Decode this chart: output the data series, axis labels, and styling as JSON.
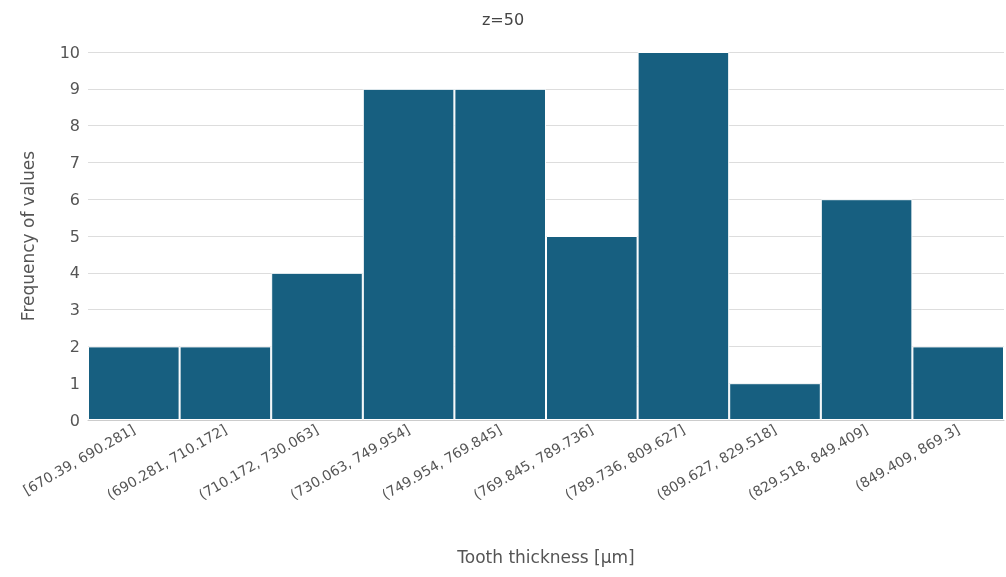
{
  "chart_data": {
    "type": "bar",
    "title": "z=50",
    "xlabel": "Tooth thickness [µm]",
    "ylabel": "Frequency of values",
    "categories": [
      "[670.39, 690.281]",
      "(690.281, 710.172]",
      "(710.172, 730.063]",
      "(730.063, 749.954]",
      "(749.954, 769.845]",
      "(769.845, 789.736]",
      "(789.736, 809.627]",
      "(809.627, 829.518]",
      "(829.518, 849.409]",
      "(849.409, 869.3]"
    ],
    "values": [
      2,
      2,
      4,
      9,
      9,
      5,
      10,
      1,
      6,
      2
    ],
    "color": "#175f80",
    "ylim": [
      0,
      10
    ],
    "yticks": [
      0,
      1,
      2,
      3,
      4,
      5,
      6,
      7,
      8,
      9,
      10
    ],
    "grid": "y"
  }
}
